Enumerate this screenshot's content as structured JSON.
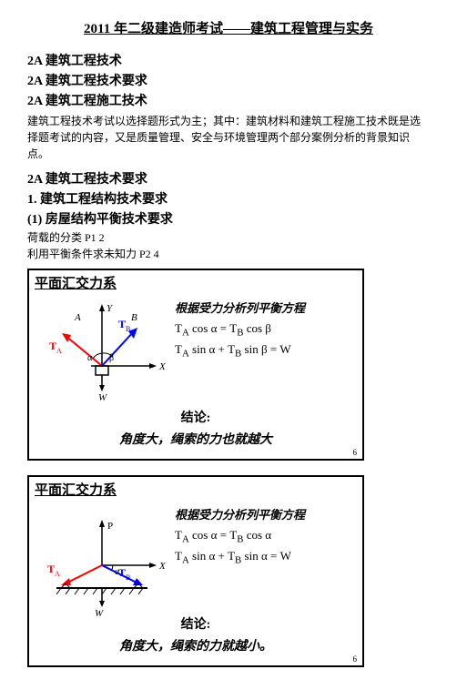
{
  "title": "2011 年二级建造师考试——建筑工程管理与实务",
  "headings2a": [
    "2A 建筑工程技术",
    "2A 建筑工程技术要求",
    "2A 建筑工程施工技术"
  ],
  "intro": "建筑工程技术考试以选择题形式为主；其中：建筑材料和建筑工程施工技术既是选择题考试的内容，又是质量管理、安全与环境管理两个部分案例分析的背景知识点。",
  "sub": [
    "2A 建筑工程技术要求",
    "1.  建筑工程结构技术要求",
    "(1) 房屋结构平衡技术要求"
  ],
  "notes": [
    "荷载的分类  P1 2",
    "利用平衡条件求未知力  P2 4"
  ],
  "fig1": {
    "title": "平面汇交力系",
    "labels": {
      "Y": "Y",
      "X": "X",
      "A": "A",
      "B": "B",
      "TA": "T",
      "TAa": "A",
      "TB": "T",
      "TBb": "B",
      "alpha": "α",
      "beta": "β",
      "W": "W"
    },
    "eq_title": "根据受力分析列平衡方程",
    "eqs": [
      "T<sub>A</sub> cos α = T<sub>B</sub> cos β",
      "T<sub>A</sub> sin α + T<sub>B</sub> sin β = W"
    ],
    "conclusion_label": "结论:",
    "conclusion": "角度大，绳索的力也就越大",
    "pagenum": "6",
    "colors": {
      "TA": "#ff0000",
      "TB": "#0000ff",
      "axis": "#000000",
      "box": "#000000"
    }
  },
  "fig2": {
    "title": "平面汇交力系",
    "labels": {
      "P": "P",
      "X": "X",
      "TA": "T",
      "TAa": "A",
      "TB": "T",
      "TBb": "B",
      "alpha": "α",
      "W": "W"
    },
    "eq_title": "根据受力分析列平衡方程",
    "eqs": [
      "T<sub>A</sub> cos α = T<sub>B</sub> cos α",
      "T<sub>A</sub> sin α + T<sub>B</sub> sin α = W"
    ],
    "conclusion_label": "结论:",
    "conclusion": "角度大，绳索的力就越小。",
    "pagenum": "6",
    "colors": {
      "TA": "#ff0000",
      "TB": "#0000ff",
      "axis": "#000000"
    }
  }
}
